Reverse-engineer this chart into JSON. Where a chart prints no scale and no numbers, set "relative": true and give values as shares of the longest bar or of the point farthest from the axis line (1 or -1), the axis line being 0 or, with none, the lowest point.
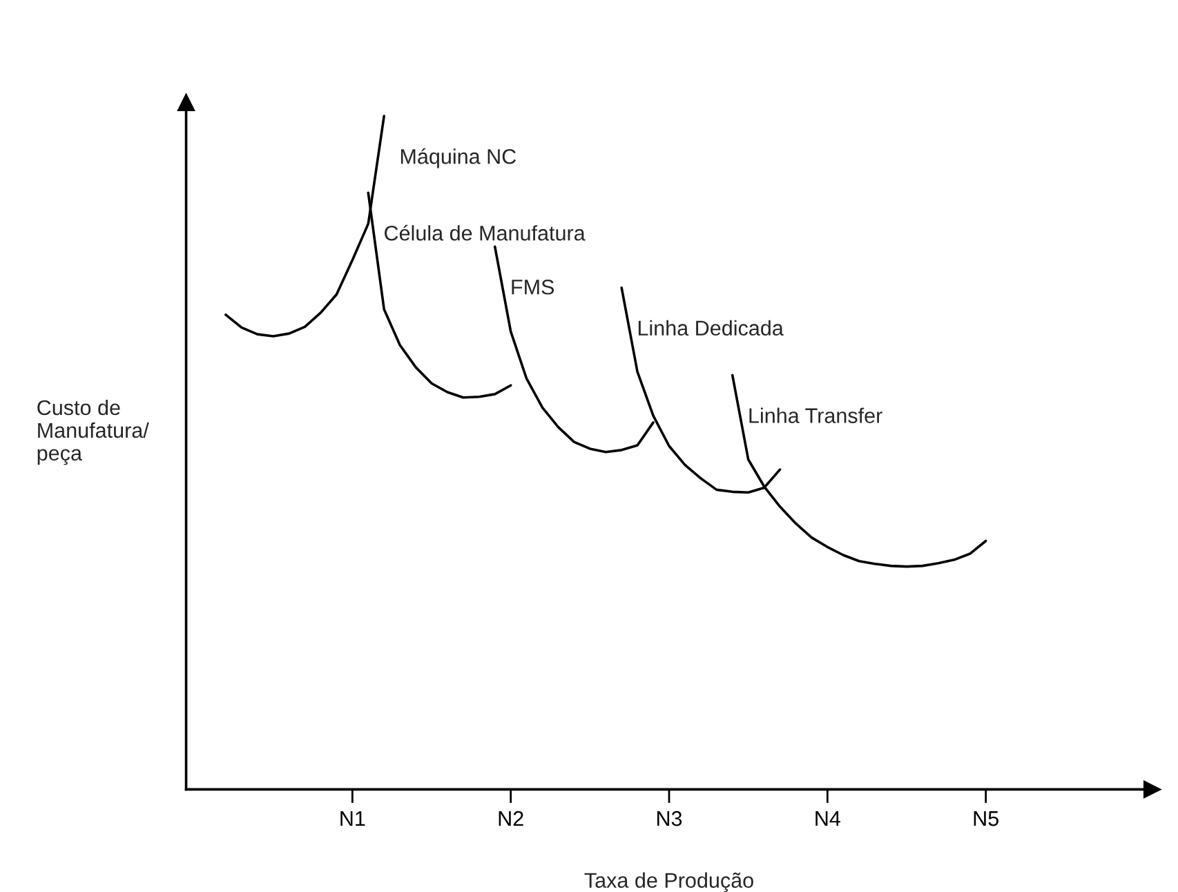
{
  "chart_data": {
    "type": "line",
    "relative": true,
    "xlabel": "Taxa de Produção",
    "ylabel": "Custo de\nManufatura/\npeça",
    "categories": [
      null,
      null,
      null,
      null,
      null,
      null,
      null,
      null,
      null,
      null,
      "N1",
      null,
      null,
      null,
      null,
      null,
      null,
      null,
      null,
      null,
      "N2",
      null,
      null,
      null,
      null,
      null,
      null,
      null,
      null,
      null,
      "N3",
      null,
      null,
      null,
      null,
      null,
      null,
      null,
      null,
      null,
      "N4",
      null,
      null,
      null,
      null,
      null,
      null,
      null,
      null,
      null,
      "N5",
      null,
      null,
      null,
      null,
      null,
      null,
      null,
      null,
      null,
      null
    ],
    "grid": false,
    "legend": false,
    "marker": "none",
    "line_style": "solid",
    "series": [
      {
        "name": "Máquina NC",
        "color": "#000000",
        "values": [
          null,
          null,
          0.705,
          0.686,
          0.676,
          0.673,
          0.677,
          0.687,
          0.708,
          0.735,
          0.786,
          0.84,
          1.0,
          null,
          null,
          null,
          null,
          null,
          null,
          null,
          null,
          null,
          null,
          null,
          null,
          null,
          null,
          null,
          null,
          null,
          null,
          null,
          null,
          null,
          null,
          null,
          null,
          null,
          null,
          null,
          null,
          null,
          null,
          null,
          null,
          null,
          null,
          null,
          null,
          null,
          null,
          null,
          null,
          null,
          null,
          null,
          null,
          null,
          null,
          null,
          null
        ]
      },
      {
        "name": "Célula de Manufatura",
        "color": "#000000",
        "values": [
          null,
          null,
          null,
          null,
          null,
          null,
          null,
          null,
          null,
          null,
          null,
          0.886,
          0.713,
          0.66,
          0.627,
          0.603,
          0.59,
          0.582,
          0.583,
          0.587,
          0.6,
          null,
          null,
          null,
          null,
          null,
          null,
          null,
          null,
          null,
          null,
          null,
          null,
          null,
          null,
          null,
          null,
          null,
          null,
          null,
          null,
          null,
          null,
          null,
          null,
          null,
          null,
          null,
          null,
          null,
          null,
          null,
          null,
          null,
          null,
          null,
          null,
          null,
          null,
          null,
          null
        ]
      },
      {
        "name": "FMS",
        "color": "#000000",
        "values": [
          null,
          null,
          null,
          null,
          null,
          null,
          null,
          null,
          null,
          null,
          null,
          null,
          null,
          null,
          null,
          null,
          null,
          null,
          null,
          0.806,
          0.68,
          0.61,
          0.567,
          0.538,
          0.516,
          0.506,
          0.501,
          0.504,
          0.511,
          0.545,
          null,
          null,
          null,
          null,
          null,
          null,
          null,
          null,
          null,
          null,
          null,
          null,
          null,
          null,
          null,
          null,
          null,
          null,
          null,
          null,
          null,
          null,
          null,
          null,
          null,
          null,
          null,
          null,
          null,
          null,
          null
        ]
      },
      {
        "name": "Linha Dedicada",
        "color": "#000000",
        "values": [
          null,
          null,
          null,
          null,
          null,
          null,
          null,
          null,
          null,
          null,
          null,
          null,
          null,
          null,
          null,
          null,
          null,
          null,
          null,
          null,
          null,
          null,
          null,
          null,
          null,
          null,
          null,
          0.745,
          0.62,
          0.555,
          0.51,
          0.482,
          0.462,
          0.445,
          0.442,
          0.441,
          0.448,
          0.475,
          null,
          null,
          null,
          null,
          null,
          null,
          null,
          null,
          null,
          null,
          null,
          null,
          null,
          null,
          null,
          null,
          null,
          null,
          null,
          null,
          null,
          null,
          null
        ]
      },
      {
        "name": "Linha Transfer",
        "color": "#000000",
        "values": [
          null,
          null,
          null,
          null,
          null,
          null,
          null,
          null,
          null,
          null,
          null,
          null,
          null,
          null,
          null,
          null,
          null,
          null,
          null,
          null,
          null,
          null,
          null,
          null,
          null,
          null,
          null,
          null,
          null,
          null,
          null,
          null,
          null,
          null,
          0.615,
          0.49,
          0.45,
          0.42,
          0.395,
          0.374,
          0.36,
          0.348,
          0.339,
          0.335,
          0.332,
          0.331,
          0.332,
          0.336,
          0.341,
          0.35,
          0.369,
          null,
          null,
          null,
          null,
          null,
          null,
          null,
          null,
          null,
          null
        ]
      }
    ]
  }
}
